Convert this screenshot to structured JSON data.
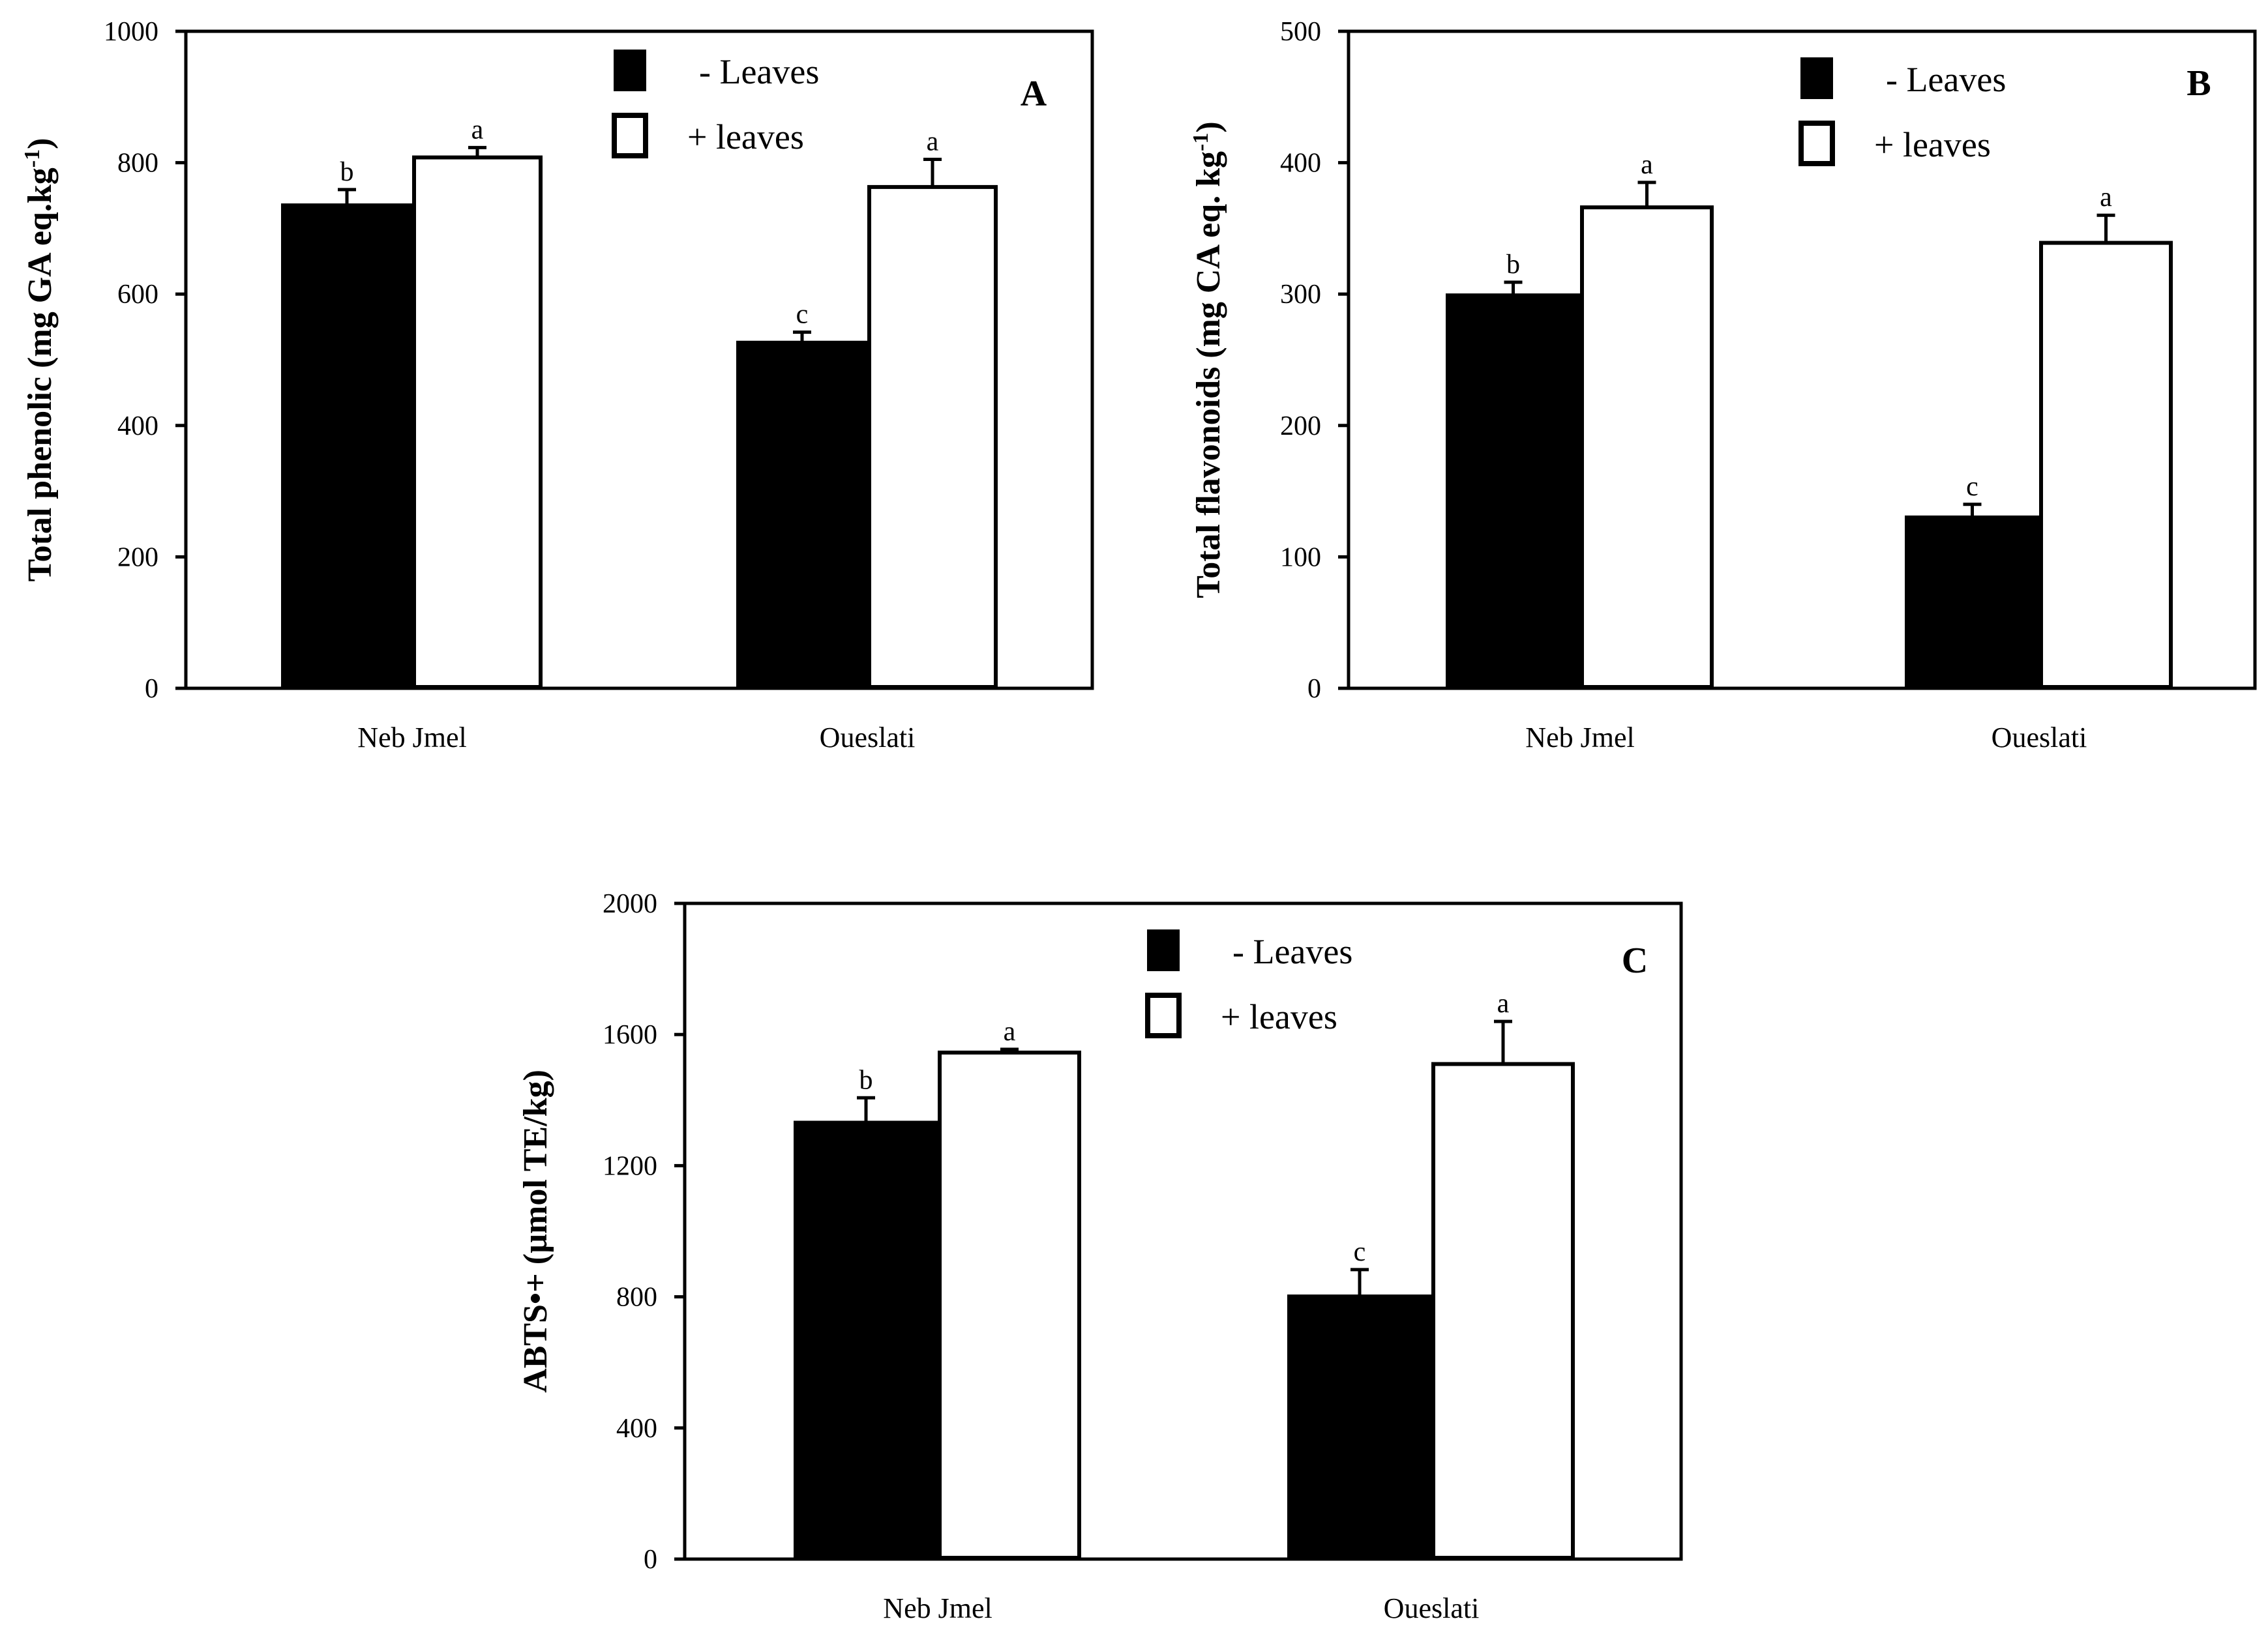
{
  "chart_data": [
    {
      "type": "bar",
      "panel_label": "A",
      "ylabel_main": "Total phenolic (mg GA eq.kg",
      "ylabel_sup": "-1",
      "ylabel_end": ")",
      "categories": [
        "Neb Jmel",
        "Oueslati"
      ],
      "ylim": [
        0,
        1000
      ],
      "yticks": [
        "0",
        "200",
        "400",
        "600",
        "800",
        "1000"
      ],
      "ytick_values": [
        0,
        200,
        400,
        600,
        800,
        1000
      ],
      "legend_placement": "top-center",
      "series": [
        {
          "name": "- Leaves",
          "fill": "#000000",
          "values": [
            737,
            528
          ],
          "errors": [
            22,
            14
          ],
          "sig": [
            "b",
            "c"
          ]
        },
        {
          "name": "+ leaves",
          "fill": "#ffffff",
          "values": [
            808,
            763
          ],
          "errors": [
            15,
            42
          ],
          "sig": [
            "a",
            "a"
          ]
        }
      ]
    },
    {
      "type": "bar",
      "panel_label": "B",
      "ylabel_main": "Total flavonoids (mg CA eq. kg",
      "ylabel_sup": "-1",
      "ylabel_end": ")",
      "categories": [
        "Neb Jmel",
        "Oueslati"
      ],
      "ylim": [
        0,
        500
      ],
      "yticks": [
        "0",
        "100",
        "200",
        "300",
        "400",
        "500"
      ],
      "ytick_values": [
        0,
        100,
        200,
        300,
        400,
        500
      ],
      "legend_placement": "top-center",
      "series": [
        {
          "name": "- Leaves",
          "fill": "#000000",
          "values": [
            300,
            131
          ],
          "errors": [
            9,
            9
          ],
          "sig": [
            "b",
            "c"
          ]
        },
        {
          "name": "+ leaves",
          "fill": "#ffffff",
          "values": [
            366,
            339
          ],
          "errors": [
            19,
            21
          ],
          "sig": [
            "a",
            "a"
          ]
        }
      ]
    },
    {
      "type": "bar",
      "panel_label": "C",
      "ylabel_main": "ABTS•+ (µmol TE/kg)",
      "ylabel_sup": "",
      "ylabel_end": "",
      "categories": [
        "Neb Jmel",
        "Oueslati"
      ],
      "ylim": [
        0,
        2000
      ],
      "yticks": [
        "0",
        "400",
        "800",
        "1200",
        "1600",
        "2000"
      ],
      "ytick_values": [
        0,
        400,
        800,
        1200,
        1600,
        2000
      ],
      "legend_placement": "top-center",
      "series": [
        {
          "name": "- Leaves",
          "fill": "#000000",
          "values": [
            1335,
            805
          ],
          "errors": [
            72,
            78
          ],
          "sig": [
            "b",
            "c"
          ]
        },
        {
          "name": "+ leaves",
          "fill": "#ffffff",
          "values": [
            1545,
            1510
          ],
          "errors": [
            10,
            130
          ],
          "sig": [
            "a",
            "a"
          ]
        }
      ]
    }
  ]
}
